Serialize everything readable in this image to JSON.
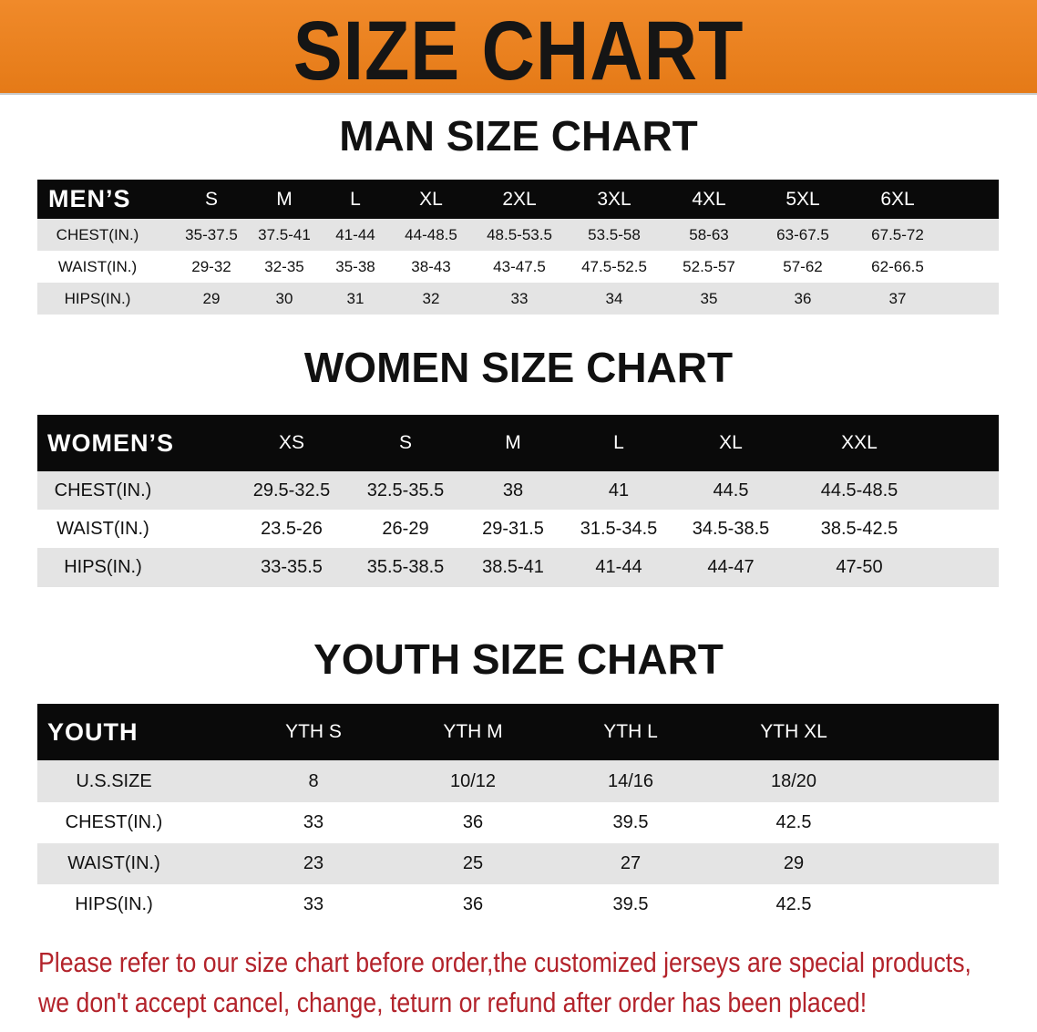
{
  "banner_title": "SIZE CHART",
  "men": {
    "title": "MAN SIZE CHART",
    "header": [
      "MEN’S",
      "S",
      "M",
      "L",
      "XL",
      "2XL",
      "3XL",
      "4XL",
      "5XL",
      "6XL"
    ],
    "rows": [
      [
        "CHEST(IN.)",
        "35-37.5",
        "37.5-41",
        "41-44",
        "44-48.5",
        "48.5-53.5",
        "53.5-58",
        "58-63",
        "63-67.5",
        "67.5-72"
      ],
      [
        "WAIST(IN.)",
        "29-32",
        "32-35",
        "35-38",
        "38-43",
        "43-47.5",
        "47.5-52.5",
        "52.5-57",
        "57-62",
        "62-66.5"
      ],
      [
        "HIPS(IN.)",
        "29",
        "30",
        "31",
        "32",
        "33",
        "34",
        "35",
        "36",
        "37"
      ]
    ]
  },
  "women": {
    "title": "WOMEN SIZE CHART",
    "header": [
      "WOMEN’S",
      "XS",
      "S",
      "M",
      "L",
      "XL",
      "XXL"
    ],
    "rows": [
      [
        "CHEST(IN.)",
        "29.5-32.5",
        "32.5-35.5",
        "38",
        "41",
        "44.5",
        "44.5-48.5"
      ],
      [
        "WAIST(IN.)",
        "23.5-26",
        "26-29",
        "29-31.5",
        "31.5-34.5",
        "34.5-38.5",
        "38.5-42.5"
      ],
      [
        "HIPS(IN.)",
        "33-35.5",
        "35.5-38.5",
        "38.5-41",
        "41-44",
        "44-47",
        "47-50"
      ]
    ]
  },
  "youth": {
    "title": "YOUTH SIZE CHART",
    "header": [
      "YOUTH",
      "YTH S",
      "YTH M",
      "YTH L",
      "YTH XL"
    ],
    "rows": [
      [
        "U.S.SIZE",
        "8",
        "10/12",
        "14/16",
        "18/20"
      ],
      [
        "CHEST(IN.)",
        "33",
        "36",
        "39.5",
        "42.5"
      ],
      [
        "WAIST(IN.)",
        "23",
        "25",
        "27",
        "29"
      ],
      [
        "HIPS(IN.)",
        "33",
        "36",
        "39.5",
        "42.5"
      ]
    ]
  },
  "notice": [
    "Please refer to our size chart before order,the customized jerseys are special products,",
    "we don't accept cancel, change, teturn or refund after order has been placed!"
  ],
  "colors": {
    "banner": "#e8801e",
    "header_row": "#0a0a0a",
    "stripe": "#e4e4e4",
    "notice": "#b3232b"
  }
}
